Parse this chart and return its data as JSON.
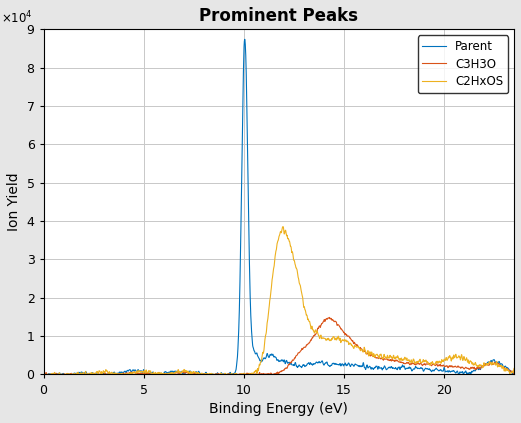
{
  "title": "Prominent Peaks",
  "xlabel": "Binding Energy (eV)",
  "ylabel": "Ion Yield",
  "xlim": [
    0,
    23.5
  ],
  "ylim": [
    0,
    90000
  ],
  "legend_labels": [
    "Parent",
    "C3H3O",
    "C2HxOS"
  ],
  "line_colors": [
    "#0072BD",
    "#D95319",
    "#EDB120"
  ],
  "background_color": "#E6E6E6",
  "plot_background": "#FFFFFF",
  "grid_color": "#C8C8C8",
  "title_fontsize": 12,
  "label_fontsize": 10,
  "seed": 17
}
